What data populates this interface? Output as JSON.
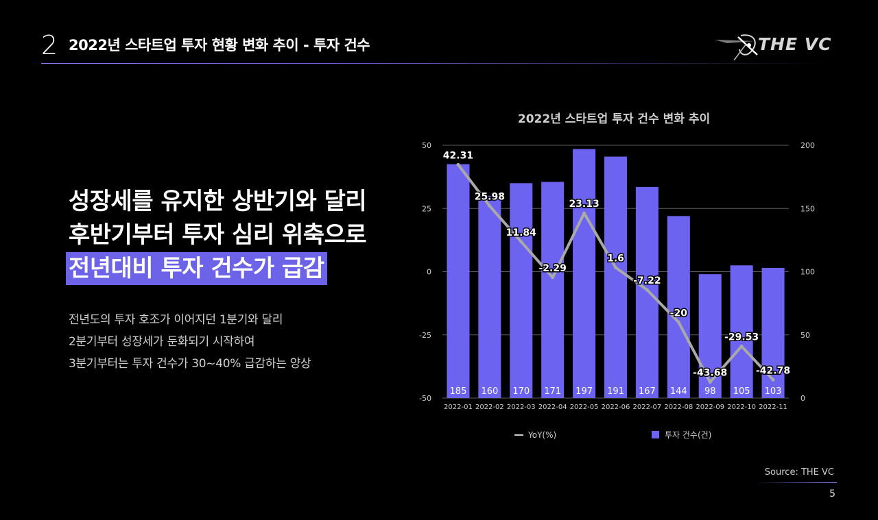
{
  "header": {
    "section_number": "2",
    "title": "2022년 스타트업 투자 현황 변화 추이 - 투자 건수",
    "logo_text": "THE VC"
  },
  "headline": {
    "line1": "성장세를 유지한 상반기와 달리",
    "line2": "후반기부터 투자 심리 위축으로",
    "line3_highlight": "전년대비 투자 건수가 급감"
  },
  "body": {
    "line1": "전년도의 투자 호조가 이어지던 1분기와 달리",
    "line2": "2분기부터 성장세가 둔화되기 시작하여",
    "line3": "3분기부터는 투자 건수가 30~40% 급감하는 양상"
  },
  "footer": {
    "source": "Source: THE VC",
    "page": "5"
  },
  "colors": {
    "bar": "#6c63f0",
    "line": "#a9a9a9",
    "accent": "#6c63e8"
  },
  "chart_data": {
    "type": "bar",
    "title": "2022년 스타트업 투자 건수 변화 추이",
    "categories": [
      "2022-01",
      "2022-02",
      "2022-03",
      "2022-04",
      "2022-05",
      "2022-06",
      "2022-07",
      "2022-08",
      "2022-09",
      "2022-10",
      "2022-11"
    ],
    "series": [
      {
        "name": "투자 건수(건)",
        "type": "bar",
        "axis": "right",
        "values": [
          185,
          160,
          170,
          171,
          197,
          191,
          167,
          144,
          98,
          105,
          103
        ]
      },
      {
        "name": "YoY(%)",
        "type": "line",
        "axis": "left",
        "values": [
          42.31,
          25.98,
          11.84,
          -2.29,
          23.13,
          1.6,
          -7.22,
          -20,
          -43.68,
          -29.53,
          -42.78
        ]
      }
    ],
    "left_axis": {
      "range": [
        -50,
        50
      ],
      "ticks": [
        "50",
        "25",
        "0",
        "-25",
        "-50"
      ]
    },
    "right_axis": {
      "range": [
        0,
        200
      ],
      "ticks": [
        "200",
        "150",
        "100",
        "50",
        "0"
      ]
    },
    "legend": {
      "position": "bottom",
      "labels": [
        "YoY(%)",
        "투자 건수(건)"
      ]
    },
    "grid": true
  }
}
